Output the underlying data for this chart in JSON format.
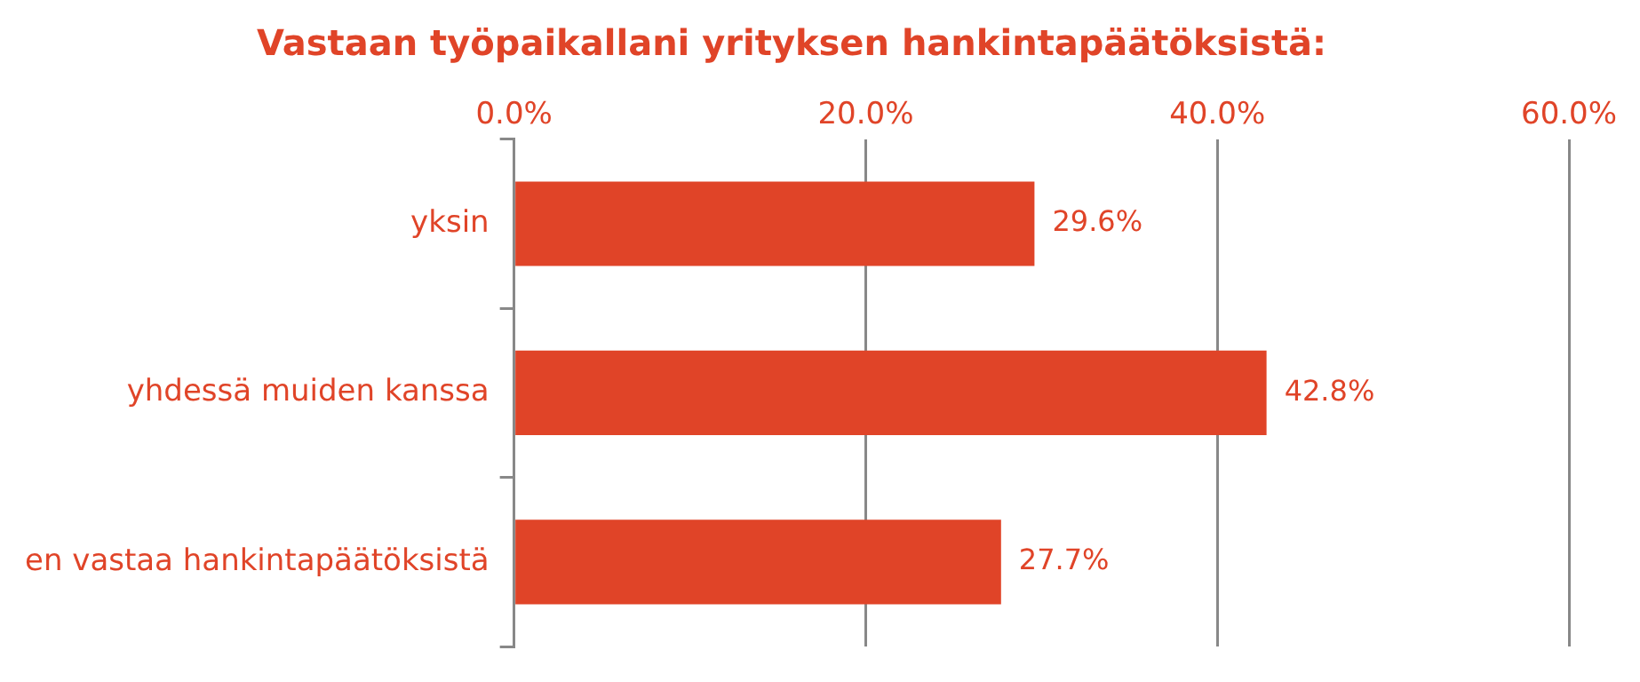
{
  "chart_data": {
    "type": "bar",
    "orientation": "horizontal",
    "title": "Vastaan työpaikallani yrityksen hankintapäätöksistä:",
    "categories": [
      "yksin",
      "yhdessä muiden kanssa",
      "en vastaa hankintapäätöksistä"
    ],
    "values": [
      29.6,
      42.8,
      27.7
    ],
    "color": "#e04428",
    "value_labels": [
      "29.6%",
      "42.8%",
      "27.7%"
    ],
    "xlim": [
      0,
      60
    ],
    "xticks": [
      {
        "value": 0,
        "label": "0.0%"
      },
      {
        "value": 20,
        "label": "20.0%"
      },
      {
        "value": 40,
        "label": "40.0%"
      },
      {
        "value": 60,
        "label": "60.0%"
      }
    ],
    "grid": "x"
  }
}
